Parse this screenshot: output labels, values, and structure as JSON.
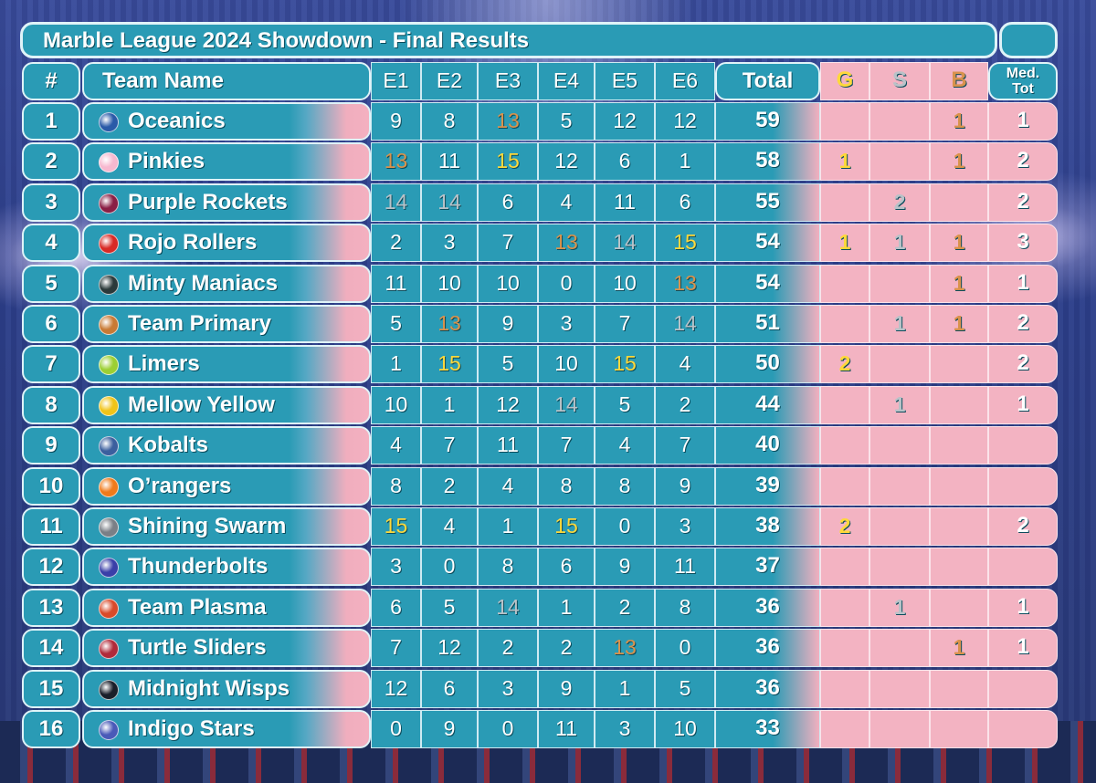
{
  "title": "Marble League 2024 Showdown - Final Results",
  "headers": {
    "rank": "#",
    "team": "Team Name",
    "events": [
      "E1",
      "E2",
      "E3",
      "E4",
      "E5",
      "E6"
    ],
    "total": "Total",
    "gold": "G",
    "silver": "S",
    "bronze": "B",
    "medal_total_line1": "Med.",
    "medal_total_line2": "Tot"
  },
  "colors": {
    "gold": "#ffd83a",
    "silver": "#b9c2c8",
    "bronze": "#d9924c",
    "panel": "#2a9bb5",
    "medal_panel": "#f3b3c2"
  },
  "rows": [
    {
      "rank": "1",
      "team": "Oceanics",
      "marble": "#2a5aa8",
      "scores": [
        "9",
        "8",
        "13",
        "5",
        "12",
        "12"
      ],
      "total": "59",
      "g": "",
      "s": "",
      "b": "1",
      "medals": "1"
    },
    {
      "rank": "2",
      "team": "Pinkies",
      "marble": "#f7b8cf",
      "scores": [
        "13",
        "11",
        "15",
        "12",
        "6",
        "1"
      ],
      "total": "58",
      "g": "1",
      "s": "",
      "b": "1",
      "medals": "2"
    },
    {
      "rank": "3",
      "team": "Purple Rockets",
      "marble": "#8a1f45",
      "scores": [
        "14",
        "14",
        "6",
        "4",
        "11",
        "6"
      ],
      "total": "55",
      "g": "",
      "s": "2",
      "b": "",
      "medals": "2"
    },
    {
      "rank": "4",
      "team": "Rojo Rollers",
      "marble": "#d82a26",
      "scores": [
        "2",
        "3",
        "7",
        "13",
        "14",
        "15"
      ],
      "total": "54",
      "g": "1",
      "s": "1",
      "b": "1",
      "medals": "3"
    },
    {
      "rank": "5",
      "team": "Minty Maniacs",
      "marble": "#2b3a3a",
      "scores": [
        "11",
        "10",
        "10",
        "0",
        "10",
        "13"
      ],
      "total": "54",
      "g": "",
      "s": "",
      "b": "1",
      "medals": "1"
    },
    {
      "rank": "6",
      "team": "Team Primary",
      "marble": "#c87a35",
      "scores": [
        "5",
        "13",
        "9",
        "3",
        "7",
        "14"
      ],
      "total": "51",
      "g": "",
      "s": "1",
      "b": "1",
      "medals": "2"
    },
    {
      "rank": "7",
      "team": "Limers",
      "marble": "#9ccf33",
      "scores": [
        "1",
        "15",
        "5",
        "10",
        "15",
        "4"
      ],
      "total": "50",
      "g": "2",
      "s": "",
      "b": "",
      "medals": "2"
    },
    {
      "rank": "8",
      "team": "Mellow Yellow",
      "marble": "#f0c419",
      "scores": [
        "10",
        "1",
        "12",
        "14",
        "5",
        "2"
      ],
      "total": "44",
      "g": "",
      "s": "1",
      "b": "",
      "medals": "1"
    },
    {
      "rank": "9",
      "team": "Kobalts",
      "marble": "#3b5f9e",
      "scores": [
        "4",
        "7",
        "11",
        "7",
        "4",
        "7"
      ],
      "total": "40",
      "g": "",
      "s": "",
      "b": "",
      "medals": ""
    },
    {
      "rank": "10",
      "team": "O’rangers",
      "marble": "#f07a1a",
      "scores": [
        "8",
        "2",
        "4",
        "8",
        "8",
        "9"
      ],
      "total": "39",
      "g": "",
      "s": "",
      "b": "",
      "medals": ""
    },
    {
      "rank": "11",
      "team": "Shining Swarm",
      "marble": "#7a7f86",
      "scores": [
        "15",
        "4",
        "1",
        "15",
        "0",
        "3"
      ],
      "total": "38",
      "g": "2",
      "s": "",
      "b": "",
      "medals": "2"
    },
    {
      "rank": "12",
      "team": "Thunderbolts",
      "marble": "#3a3fa8",
      "scores": [
        "3",
        "0",
        "8",
        "6",
        "9",
        "11"
      ],
      "total": "37",
      "g": "",
      "s": "",
      "b": "",
      "medals": ""
    },
    {
      "rank": "13",
      "team": "Team Plasma",
      "marble": "#d84a2a",
      "scores": [
        "6",
        "5",
        "14",
        "1",
        "2",
        "8"
      ],
      "total": "36",
      "g": "",
      "s": "1",
      "b": "",
      "medals": "1"
    },
    {
      "rank": "14",
      "team": "Turtle Sliders",
      "marble": "#b02a3a",
      "scores": [
        "7",
        "12",
        "2",
        "2",
        "13",
        "0"
      ],
      "total": "36",
      "g": "",
      "s": "",
      "b": "1",
      "medals": "1"
    },
    {
      "rank": "15",
      "team": "Midnight Wisps",
      "marble": "#1a1f2a",
      "scores": [
        "12",
        "6",
        "3",
        "9",
        "1",
        "5"
      ],
      "total": "36",
      "g": "",
      "s": "",
      "b": "",
      "medals": ""
    },
    {
      "rank": "16",
      "team": "Indigo Stars",
      "marble": "#4a5ab8",
      "scores": [
        "0",
        "9",
        "0",
        "11",
        "3",
        "10"
      ],
      "total": "33",
      "g": "",
      "s": "",
      "b": "",
      "medals": ""
    }
  ]
}
